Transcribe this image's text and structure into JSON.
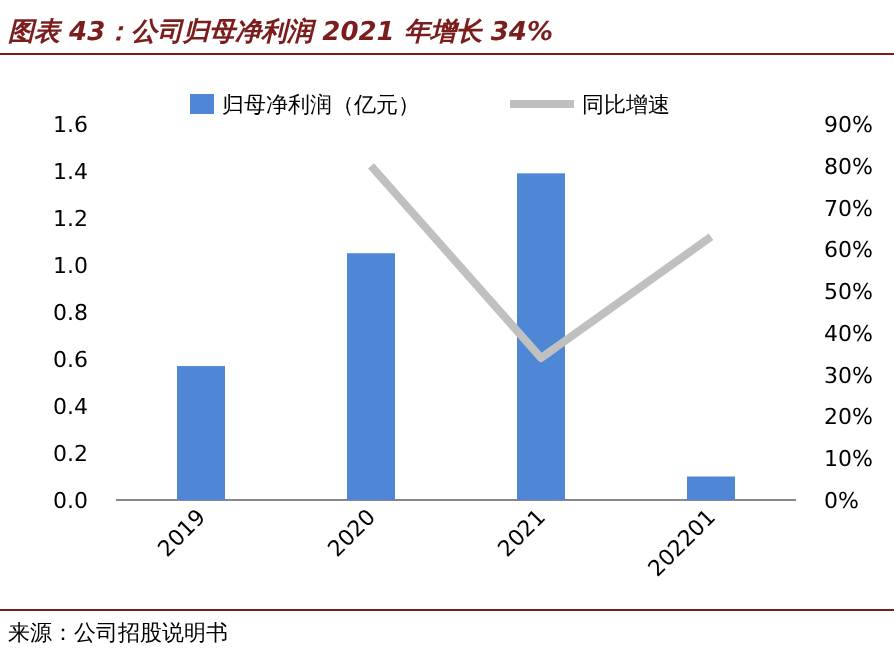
{
  "chart_data": {
    "type": "bar",
    "title": "图表 43：公司归母净利润 2021 年增长 34%",
    "categories": [
      "2019",
      "2020",
      "2021",
      "202201"
    ],
    "series": [
      {
        "name": "归母净利润（亿元）",
        "color": "#4f86d6",
        "values": [
          0.57,
          1.05,
          1.39,
          0.1
        ]
      },
      {
        "name": "同比增速",
        "type": "line",
        "axis": "y2",
        "color": "#c0c0c0",
        "values": [
          null,
          80,
          34,
          63
        ]
      }
    ],
    "ylim": [
      0,
      1.6
    ],
    "yticks": [
      {
        "value": 0,
        "label": "0.0"
      },
      {
        "value": 0.2,
        "label": "0.2"
      },
      {
        "value": 0.4,
        "label": "0.4"
      },
      {
        "value": 0.6,
        "label": "0.6"
      },
      {
        "value": 0.8,
        "label": "0.8"
      },
      {
        "value": 1,
        "label": "1.0"
      },
      {
        "value": 1.2,
        "label": "1.2"
      },
      {
        "value": 1.4,
        "label": "1.4"
      },
      {
        "value": 1.6,
        "label": "1.6"
      }
    ],
    "y2lim": [
      0,
      90
    ],
    "y2ticks": [
      {
        "value": 0,
        "label": "0%"
      },
      {
        "value": 10,
        "label": "10%"
      },
      {
        "value": 20,
        "label": "20%"
      },
      {
        "value": 30,
        "label": "30%"
      },
      {
        "value": 40,
        "label": "40%"
      },
      {
        "value": 50,
        "label": "50%"
      },
      {
        "value": 60,
        "label": "60%"
      },
      {
        "value": 70,
        "label": "70%"
      },
      {
        "value": 80,
        "label": "80%"
      },
      {
        "value": 90,
        "label": "90%"
      }
    ],
    "legend": "top",
    "annotations": [
      "来源：公司招股说明书"
    ]
  }
}
